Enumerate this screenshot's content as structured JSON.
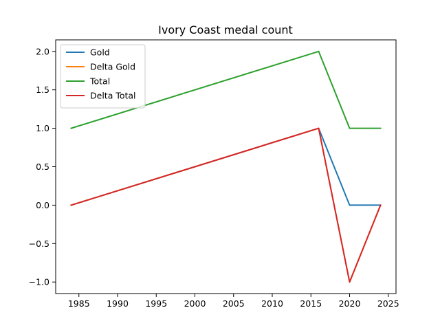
{
  "chart_data": {
    "type": "line",
    "title": "Ivory Coast medal count",
    "xlabel": "",
    "ylabel": "",
    "x": [
      1984,
      2016,
      2020,
      2024
    ],
    "xlim": [
      1982.0,
      2026.0
    ],
    "ylim": [
      -1.15,
      2.15
    ],
    "xticks": [
      1985,
      1990,
      1995,
      2000,
      2005,
      2010,
      2015,
      2020,
      2025
    ],
    "yticks": [
      -1.0,
      -0.5,
      0.0,
      0.5,
      1.0,
      1.5,
      2.0
    ],
    "ytick_labels": [
      "−1.0",
      "−0.5",
      "0.0",
      "0.5",
      "1.0",
      "1.5",
      "2.0"
    ],
    "grid": false,
    "legend_position": "top-left",
    "series": [
      {
        "name": "Gold",
        "color": "#1f77b4",
        "values": [
          0,
          1,
          0,
          0
        ]
      },
      {
        "name": "Delta Gold",
        "color": "#ff7f0e",
        "values": [
          0,
          1,
          -1,
          0
        ]
      },
      {
        "name": "Total",
        "color": "#2ca02c",
        "values": [
          1,
          2,
          1,
          1
        ]
      },
      {
        "name": "Delta Total",
        "color": "#d62728",
        "values": [
          0,
          1,
          -1,
          0
        ]
      }
    ]
  }
}
